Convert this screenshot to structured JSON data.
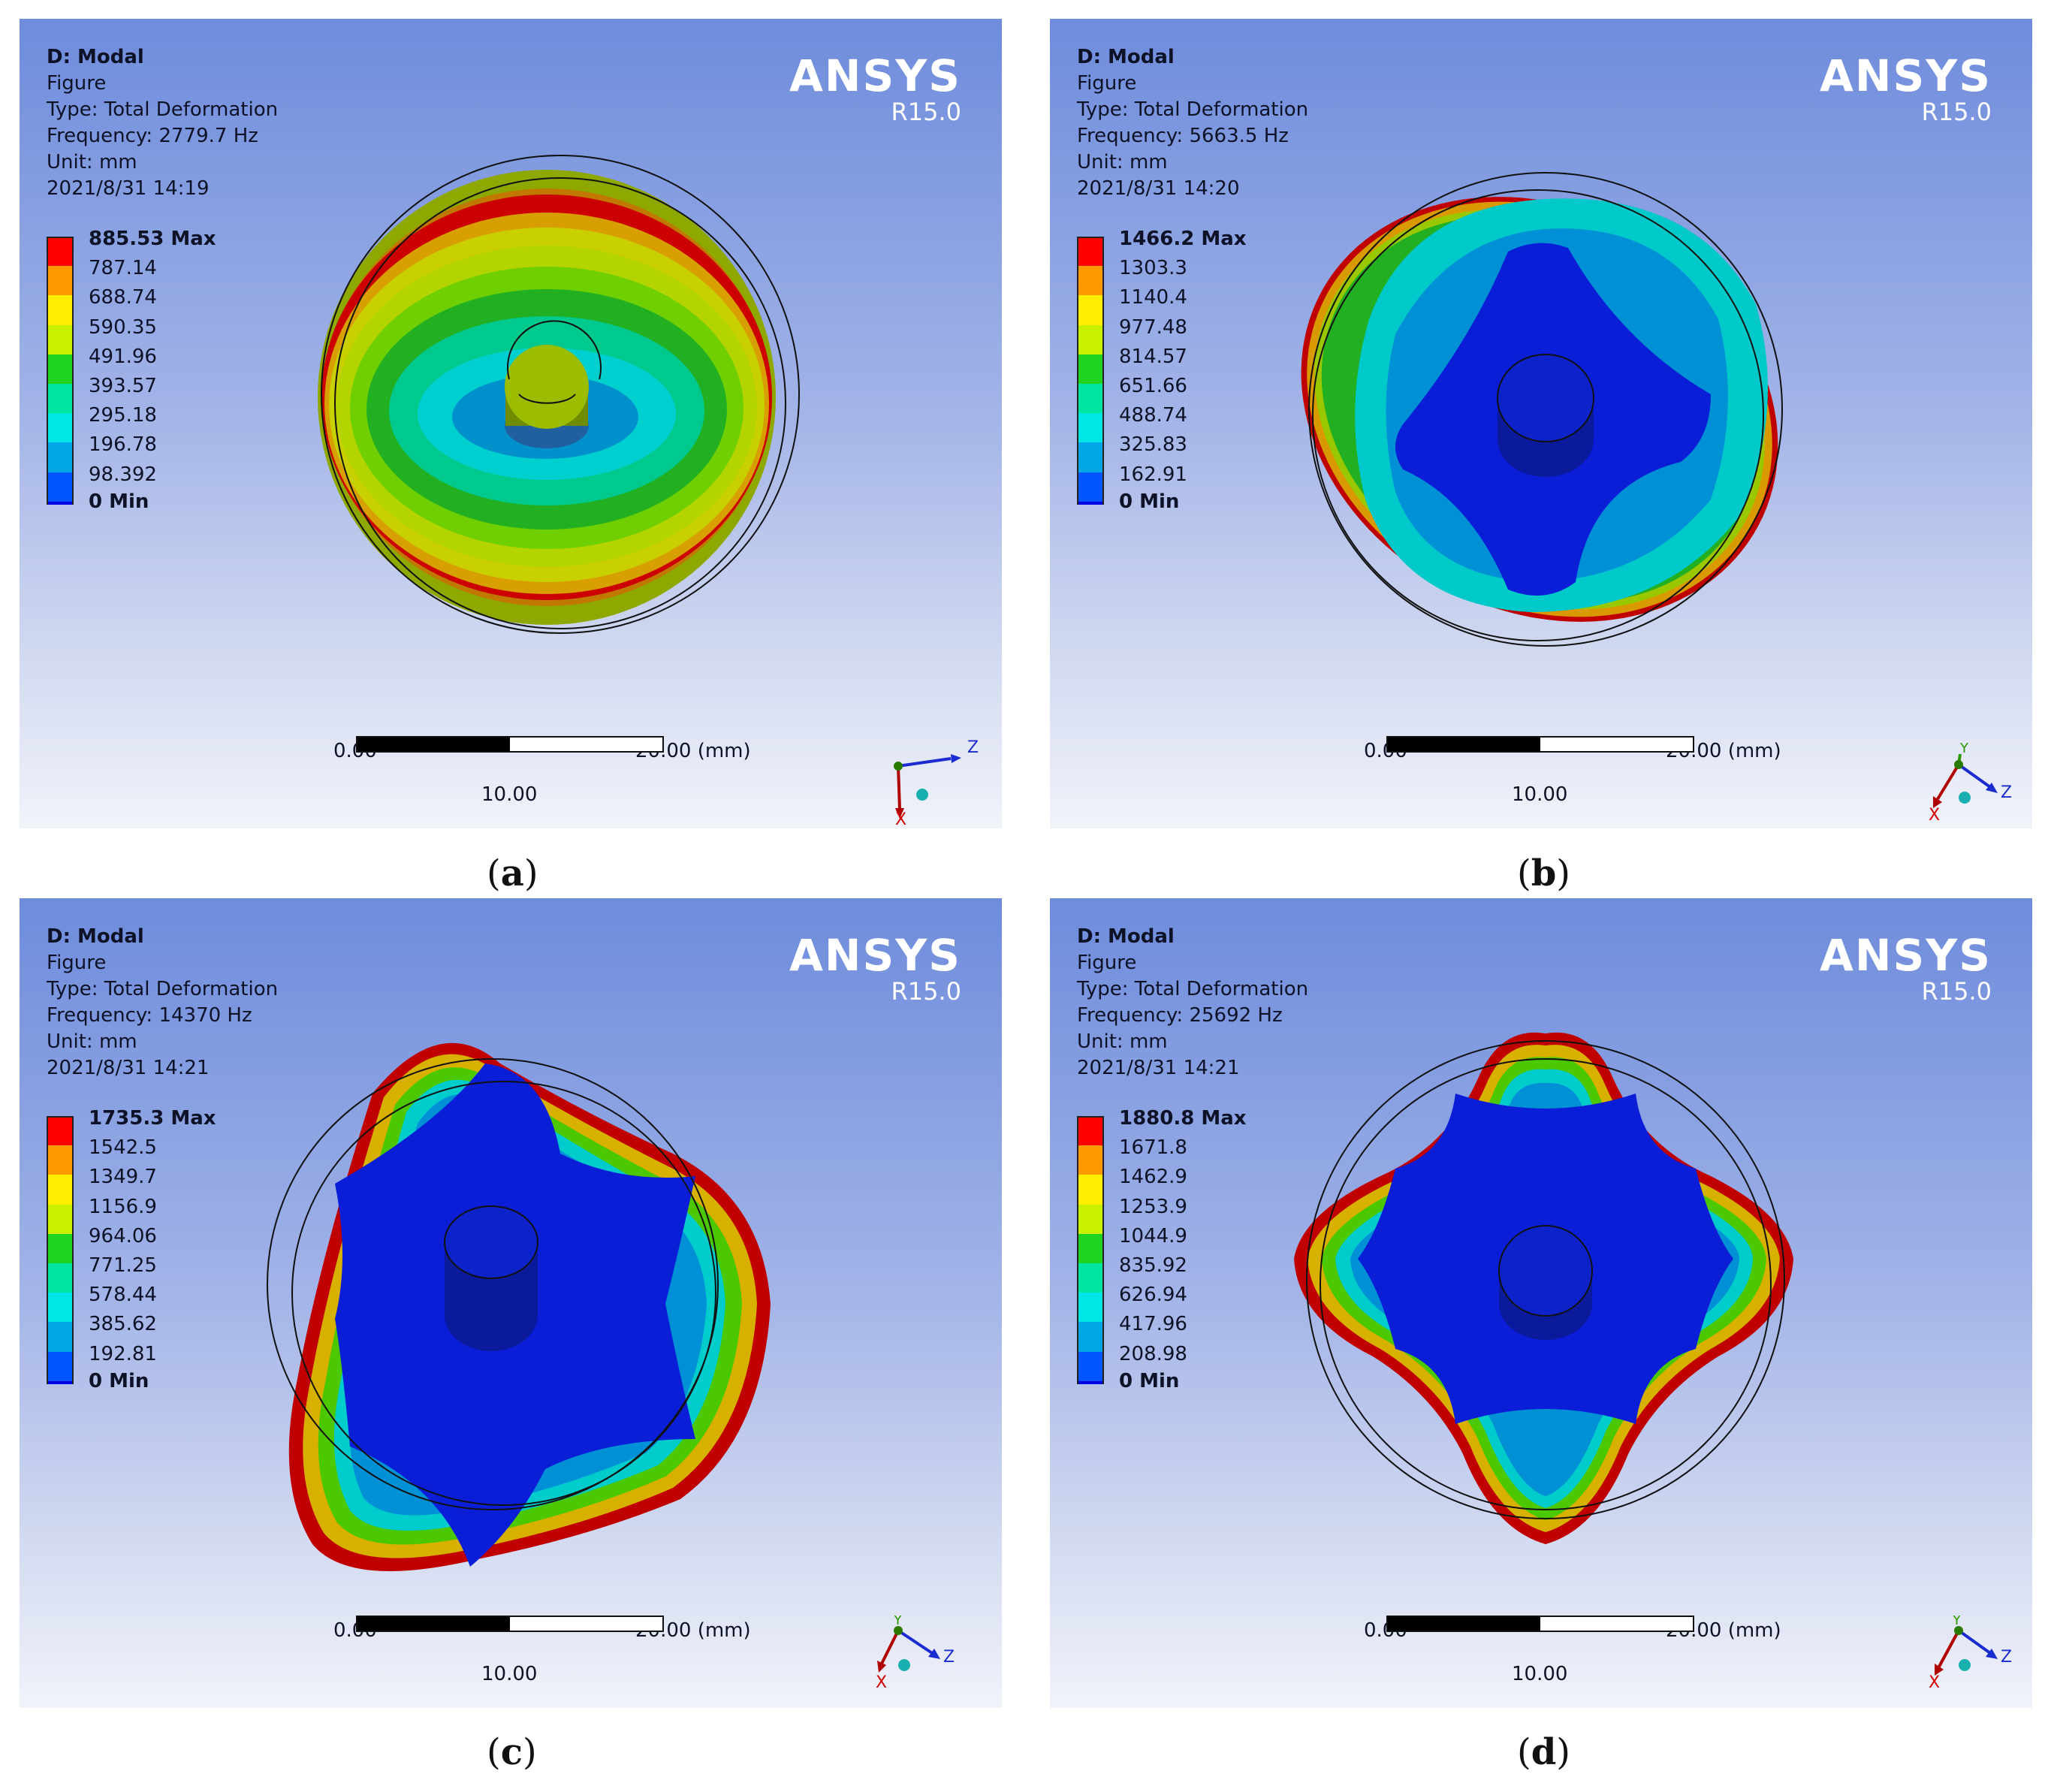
{
  "panels": [
    {
      "id": "a",
      "header": {
        "title": "D: Modal",
        "figure": "Figure",
        "type": "Type: Total Deformation",
        "frequency": "Frequency: 2779.7 Hz",
        "unit": "Unit: mm",
        "timestamp": "2021/8/31 14:19"
      },
      "legend": [
        "885.53 Max",
        "787.14",
        "688.74",
        "590.35",
        "491.96",
        "393.57",
        "295.18",
        "196.78",
        "98.392",
        "0 Min"
      ],
      "caption_letter": "a",
      "triad": "x-down"
    },
    {
      "id": "b",
      "header": {
        "title": "D: Modal",
        "figure": "Figure",
        "type": "Type: Total Deformation",
        "frequency": "Frequency: 5663.5 Hz",
        "unit": "Unit: mm",
        "timestamp": "2021/8/31 14:20"
      },
      "legend": [
        "1466.2 Max",
        "1303.3",
        "1140.4",
        "977.48",
        "814.57",
        "651.66",
        "488.74",
        "325.83",
        "162.91",
        "0 Min"
      ],
      "caption_letter": "b",
      "triad": "iso"
    },
    {
      "id": "c",
      "header": {
        "title": "D: Modal",
        "figure": "Figure",
        "type": "Type: Total Deformation",
        "frequency": "Frequency: 14370 Hz",
        "unit": "Unit: mm",
        "timestamp": "2021/8/31 14:21"
      },
      "legend": [
        "1735.3 Max",
        "1542.5",
        "1349.7",
        "1156.9",
        "964.06",
        "771.25",
        "578.44",
        "385.62",
        "192.81",
        "0 Min"
      ],
      "caption_letter": "c",
      "triad": "iso"
    },
    {
      "id": "d",
      "header": {
        "title": "D: Modal",
        "figure": "Figure",
        "type": "Type: Total Deformation",
        "frequency": "Frequency: 25692 Hz",
        "unit": "Unit: mm",
        "timestamp": "2021/8/31 14:21"
      },
      "legend": [
        "1880.8 Max",
        "1671.8",
        "1462.9",
        "1253.9",
        "1044.9",
        "835.92",
        "626.94",
        "417.96",
        "208.98",
        "0 Min"
      ],
      "caption_letter": "d",
      "triad": "iso"
    }
  ],
  "logo": {
    "name": "ANSYS",
    "version": "R15.0"
  },
  "scale": {
    "start": "0.00",
    "mid": "10.00",
    "end": "20.00 (mm)"
  },
  "caption": {
    "open": "(",
    "close": ")"
  },
  "axes": {
    "x": "X",
    "y": "Y",
    "z": "Z"
  },
  "colors": {
    "legend": [
      "#ff0000",
      "#ff9900",
      "#ffee00",
      "#c8f000",
      "#22d422",
      "#00e6a0",
      "#00e6e6",
      "#00a6e6",
      "#0055ff",
      "#0000e6"
    ],
    "background_top": "#6e8cdc",
    "background_bottom": "#f1f3fa"
  }
}
